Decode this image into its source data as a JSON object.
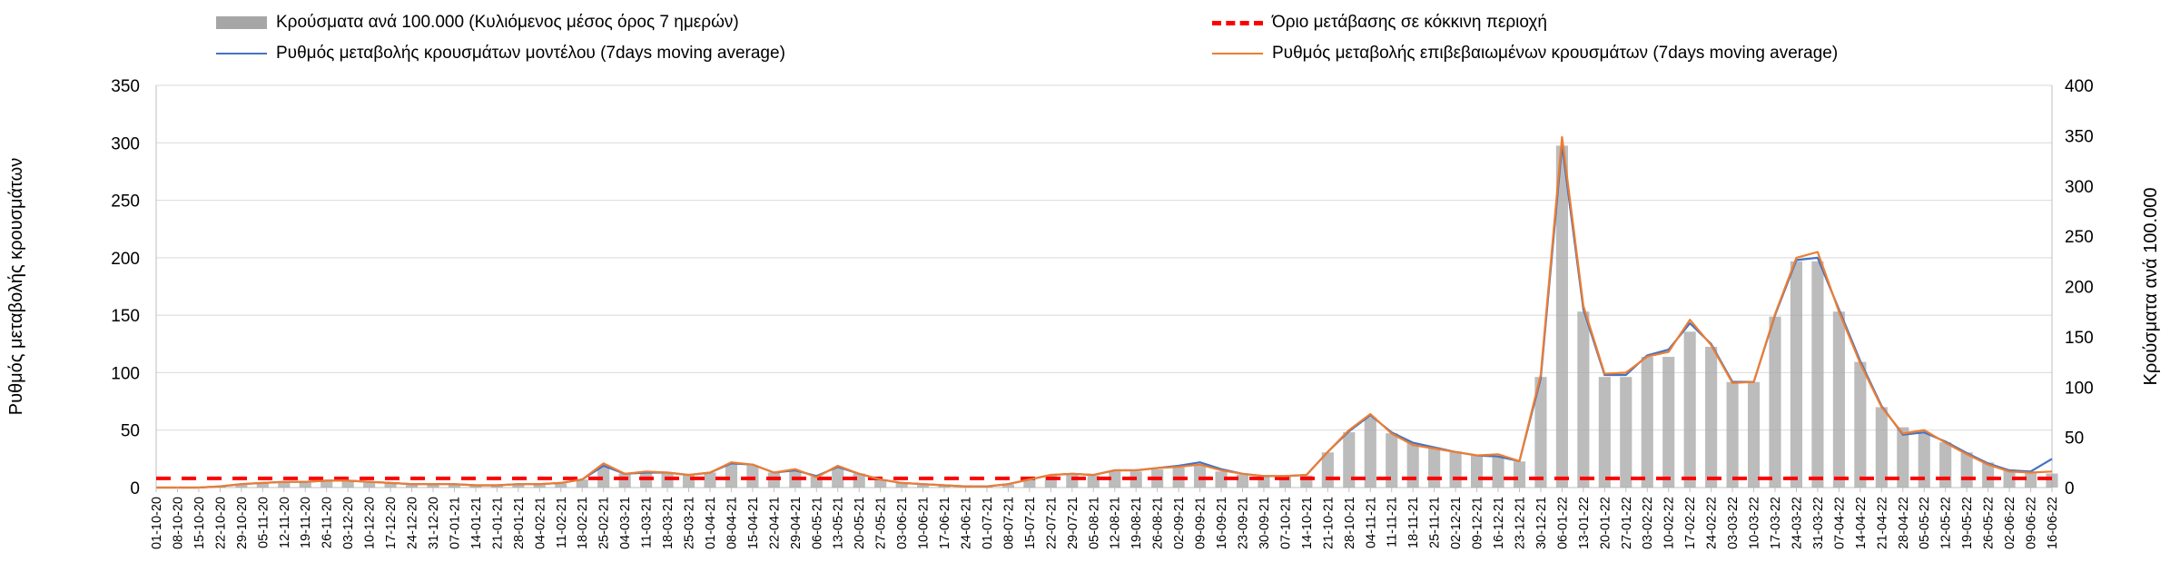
{
  "chart_data": {
    "type": "bar+line",
    "legend": {
      "bars": "Κρούσματα ανά 100.000 (Κυλιόμενος μέσος όρος 7 ημερών)",
      "threshold": "Όριο μετάβασης σε κόκκινη περιοχή",
      "model": "Ρυθμός μεταβολής κρουσμάτων μοντέλου (7days moving average)",
      "confirmed": "Ρυθμός μεταβολής επιβεβαιωμένων κρουσμάτων (7days moving average)"
    },
    "ylabel_left": "Ρυθμός μεταβολής κρουσμάτων",
    "ylabel_right": "Κρούσματα ανά 100.000",
    "ylim_left": [
      0,
      350
    ],
    "ylim_right": [
      0,
      400
    ],
    "yticks_left": [
      0,
      50,
      100,
      150,
      200,
      250,
      300,
      350
    ],
    "yticks_right": [
      0,
      50,
      100,
      150,
      200,
      250,
      300,
      350,
      400
    ],
    "threshold_value": 8,
    "x_labels": [
      "01-10-20",
      "08-10-20",
      "15-10-20",
      "22-10-20",
      "29-10-20",
      "05-11-20",
      "12-11-20",
      "19-11-20",
      "26-11-20",
      "03-12-20",
      "10-12-20",
      "17-12-20",
      "24-12-20",
      "31-12-20",
      "07-01-21",
      "14-01-21",
      "21-01-21",
      "28-01-21",
      "04-02-21",
      "11-02-21",
      "18-02-21",
      "25-02-21",
      "04-03-21",
      "11-03-21",
      "18-03-21",
      "25-03-21",
      "01-04-21",
      "08-04-21",
      "15-04-21",
      "22-04-21",
      "29-04-21",
      "06-05-21",
      "13-05-21",
      "20-05-21",
      "27-05-21",
      "03-06-21",
      "10-06-21",
      "17-06-21",
      "24-06-21",
      "01-07-21",
      "08-07-21",
      "15-07-21",
      "22-07-21",
      "29-07-21",
      "05-08-21",
      "12-08-21",
      "19-08-21",
      "26-08-21",
      "02-09-21",
      "09-09-21",
      "16-09-21",
      "23-09-21",
      "30-09-21",
      "07-10-21",
      "14-10-21",
      "21-10-21",
      "28-10-21",
      "04-11-21",
      "11-11-21",
      "18-11-21",
      "25-11-21",
      "02-12-21",
      "09-12-21",
      "16-12-21",
      "23-12-21",
      "30-12-21",
      "06-01-22",
      "13-01-22",
      "20-01-22",
      "27-01-22",
      "03-02-22",
      "10-02-22",
      "17-02-22",
      "24-02-22",
      "03-03-22",
      "10-03-22",
      "17-03-22",
      "24-03-22",
      "31-03-22",
      "07-04-22",
      "14-04-22",
      "21-04-22",
      "28-04-22",
      "05-05-22",
      "12-05-22",
      "19-05-22",
      "26-05-22",
      "02-06-22",
      "09-06-22",
      "16-06-22"
    ],
    "weekly_cases_per_100k": [
      0,
      0,
      0,
      1,
      3,
      4,
      5,
      5,
      6,
      6,
      5,
      4,
      3,
      3,
      3,
      2,
      2,
      3,
      3,
      4,
      8,
      21,
      14,
      15,
      15,
      13,
      15,
      23,
      22,
      15,
      17,
      11,
      20,
      14,
      8,
      5,
      4,
      3,
      2,
      1,
      3,
      8,
      12,
      14,
      12,
      16,
      16,
      18,
      20,
      22,
      16,
      13,
      11,
      11,
      12,
      35,
      55,
      70,
      54,
      44,
      40,
      36,
      32,
      30,
      26,
      110,
      340,
      175,
      110,
      110,
      130,
      130,
      155,
      140,
      105,
      105,
      170,
      225,
      225,
      175,
      125,
      80,
      60,
      55,
      45,
      35,
      25,
      18,
      15,
      14
    ],
    "model_rate": [
      0,
      0,
      0,
      1,
      3,
      4,
      5,
      5,
      6,
      6,
      5,
      4,
      3,
      3,
      3,
      2,
      2,
      3,
      3,
      4,
      7,
      19,
      12,
      13,
      13,
      11,
      13,
      21,
      20,
      13,
      15,
      10,
      18,
      12,
      7,
      4,
      3,
      2,
      1,
      1,
      3,
      7,
      11,
      12,
      11,
      15,
      15,
      17,
      19,
      22,
      16,
      12,
      10,
      10,
      11,
      31,
      49,
      63,
      48,
      39,
      35,
      31,
      28,
      27,
      23,
      95,
      298,
      155,
      98,
      98,
      115,
      120,
      143,
      125,
      92,
      92,
      150,
      198,
      200,
      155,
      110,
      71,
      46,
      48,
      40,
      30,
      21,
      15,
      14,
      25
    ],
    "confirmed_rate": [
      0,
      0,
      0,
      1,
      3,
      4,
      5,
      5,
      6,
      6,
      5,
      4,
      3,
      3,
      3,
      2,
      2,
      3,
      3,
      4,
      7,
      21,
      12,
      14,
      13,
      11,
      13,
      22,
      20,
      13,
      16,
      9,
      19,
      12,
      7,
      4,
      3,
      2,
      1,
      1,
      3,
      7,
      11,
      12,
      11,
      15,
      15,
      17,
      18,
      20,
      15,
      12,
      10,
      10,
      11,
      31,
      50,
      64,
      47,
      37,
      34,
      31,
      28,
      29,
      23,
      98,
      305,
      158,
      99,
      100,
      114,
      118,
      146,
      124,
      91,
      92,
      151,
      200,
      205,
      153,
      108,
      70,
      47,
      50,
      39,
      29,
      20,
      14,
      13,
      14
    ]
  }
}
